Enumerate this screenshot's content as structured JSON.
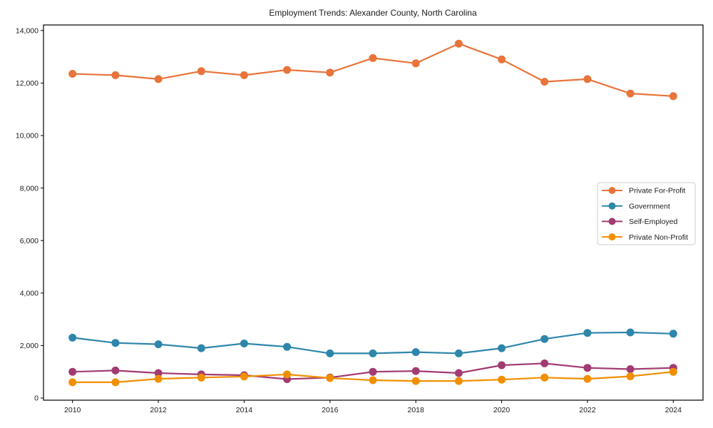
{
  "chart_data": {
    "type": "line",
    "title": "Employment Trends: Alexander County, North Carolina",
    "xlabel": "",
    "ylabel": "",
    "x": [
      2010,
      2011,
      2012,
      2013,
      2014,
      2015,
      2016,
      2017,
      2018,
      2019,
      2020,
      2021,
      2022,
      2023,
      2024
    ],
    "series": [
      {
        "name": "Private For-Profit",
        "color": "#E8743B",
        "values": [
          12350,
          12300,
          12150,
          12450,
          12300,
          12500,
          12400,
          12950,
          12750,
          13500,
          12900,
          12050,
          12150,
          11600,
          11500
        ]
      },
      {
        "name": "Government",
        "color": "#2E86AB",
        "values": [
          2300,
          2100,
          2050,
          1900,
          2080,
          1950,
          1700,
          1700,
          1750,
          1700,
          1900,
          2250,
          2480,
          2500,
          2450
        ]
      },
      {
        "name": "Self-Employed",
        "color": "#A23B72",
        "values": [
          1000,
          1050,
          950,
          900,
          870,
          720,
          780,
          1000,
          1030,
          950,
          1250,
          1320,
          1150,
          1100,
          1150
        ]
      },
      {
        "name": "Private Non-Profit",
        "color": "#F18F01",
        "values": [
          600,
          600,
          730,
          780,
          820,
          900,
          760,
          680,
          650,
          650,
          700,
          780,
          730,
          830,
          1000
        ]
      }
    ],
    "ylim": [
      0,
      14000
    ],
    "yticks": [
      0,
      2000,
      4000,
      6000,
      8000,
      10000,
      12000,
      14000
    ],
    "xticks": [
      2010,
      2012,
      2014,
      2016,
      2018,
      2020,
      2022,
      2024
    ],
    "grid": false,
    "legend_position": "center right",
    "axis_color": "#000000",
    "legend_border_color": "#cccccc",
    "legend_background": "#ffffff",
    "marker": "circle"
  }
}
